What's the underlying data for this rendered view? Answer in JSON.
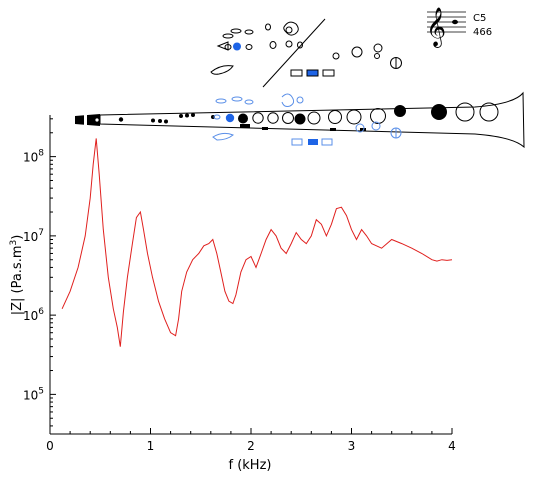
{
  "chart_data": {
    "type": "line",
    "xlabel": "f (kHz)",
    "ylabel_main": "|Z| (Pa.s.m",
    "ylabel_sup": "3",
    "ylabel_tail": ")",
    "xlim": [
      0,
      4
    ],
    "ylim_log10": [
      4.5,
      8.5
    ],
    "yscale": "log",
    "grid": false,
    "x_ticks": [
      {
        "value": 0,
        "label": "0"
      },
      {
        "value": 1,
        "label": "1"
      },
      {
        "value": 2,
        "label": "2"
      },
      {
        "value": 3,
        "label": "3"
      },
      {
        "value": 4,
        "label": "4"
      }
    ],
    "y_ticks": [
      {
        "value": 100000,
        "base": "10",
        "exp": "5"
      },
      {
        "value": 1000000,
        "base": "10",
        "exp": "6"
      },
      {
        "value": 10000000,
        "base": "10",
        "exp": "7"
      },
      {
        "value": 100000000,
        "base": "10",
        "exp": "8"
      }
    ],
    "series": [
      {
        "color": "#e0201e",
        "x": [
          0.12,
          0.2,
          0.28,
          0.35,
          0.4,
          0.43,
          0.46,
          0.49,
          0.53,
          0.58,
          0.63,
          0.67,
          0.7,
          0.73,
          0.77,
          0.82,
          0.86,
          0.9,
          0.93,
          0.97,
          1.02,
          1.08,
          1.14,
          1.2,
          1.25,
          1.28,
          1.31,
          1.36,
          1.42,
          1.48,
          1.53,
          1.58,
          1.62,
          1.66,
          1.7,
          1.74,
          1.78,
          1.82,
          1.85,
          1.9,
          1.95,
          2.0,
          2.05,
          2.1,
          2.15,
          2.2,
          2.25,
          2.3,
          2.35,
          2.4,
          2.45,
          2.5,
          2.55,
          2.6,
          2.65,
          2.7,
          2.75,
          2.8,
          2.85,
          2.9,
          2.95,
          3.0,
          3.05,
          3.1,
          3.15,
          3.2,
          3.3,
          3.4,
          3.5,
          3.6,
          3.7,
          3.8,
          3.85,
          3.9,
          3.95,
          4.0
        ],
        "y": [
          1200000,
          2000000,
          4000000,
          10000000,
          30000000,
          80000000,
          170000000,
          60000000,
          12000000,
          3000000,
          1200000,
          700000,
          400000,
          1100000,
          3000000,
          8000000,
          17000000,
          20000000,
          12000000,
          6000000,
          3000000,
          1500000,
          900000,
          600000,
          550000,
          900000,
          2000000,
          3500000,
          5000000,
          6000000,
          7500000,
          8000000,
          9000000,
          6000000,
          3500000,
          2000000,
          1500000,
          1400000,
          1800000,
          3500000,
          5000000,
          5500000,
          4000000,
          6000000,
          9000000,
          12000000,
          10000000,
          7000000,
          6000000,
          8000000,
          11000000,
          9000000,
          8000000,
          10000000,
          16000000,
          14000000,
          10000000,
          14000000,
          22000000,
          23000000,
          18000000,
          12000000,
          9000000,
          12000000,
          10000000,
          8000000,
          7000000,
          9000000,
          8000000,
          7000000,
          6000000,
          5000000,
          4800000,
          5000000,
          4900000,
          5000000
        ]
      }
    ]
  },
  "fingering_chart": {
    "note_name": "C5",
    "frequency_label": "466",
    "closed_key_color": "#000000",
    "selected_key_color": "#1e64e6",
    "highlight_color": "#5a8fe8"
  }
}
